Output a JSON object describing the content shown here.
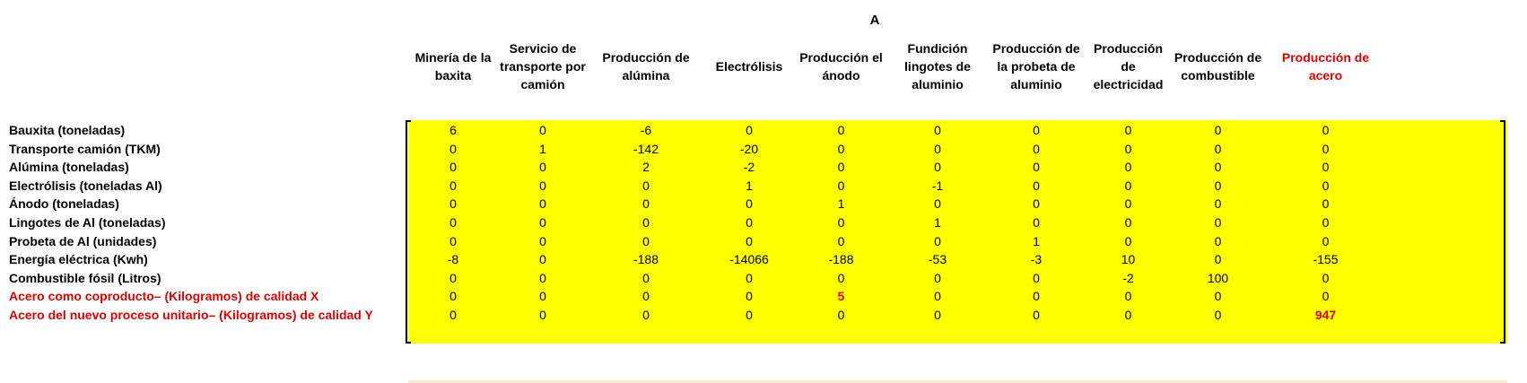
{
  "matrix_label": "A",
  "columns": [
    "Minería de la baxita",
    "Servicio de transporte por camión",
    "Producción de alúmina",
    "Electrólisis",
    "Producción el ánodo",
    "Fundición lingotes de aluminio",
    "Producción de la probeta de aluminio",
    "Producción de electricidad",
    "Producción de combustible",
    "Producción de acero"
  ],
  "highlight_color": "#ffff00",
  "accent_color": "#e00000",
  "rows": [
    {
      "label": "Bauxita (toneladas)",
      "values": [
        "6",
        "0",
        "-6",
        "0",
        "0",
        "0",
        "0",
        "0",
        "0",
        "0"
      ]
    },
    {
      "label": "Transporte camión (TKM)",
      "values": [
        "0",
        "1",
        "-142",
        "-20",
        "0",
        "0",
        "0",
        "0",
        "0",
        "0"
      ]
    },
    {
      "label": "Alúmina (toneladas)",
      "values": [
        "0",
        "0",
        "2",
        "-2",
        "0",
        "0",
        "0",
        "0",
        "0",
        "0"
      ]
    },
    {
      "label": "Electrólisis (toneladas Al)",
      "values": [
        "0",
        "0",
        "0",
        "1",
        "0",
        "-1",
        "0",
        "0",
        "0",
        "0"
      ]
    },
    {
      "label": "Ánodo (toneladas)",
      "values": [
        "0",
        "0",
        "0",
        "0",
        "1",
        "0",
        "0",
        "0",
        "0",
        "0"
      ]
    },
    {
      "label": "Lingotes de Al (toneladas)",
      "values": [
        "0",
        "0",
        "0",
        "0",
        "0",
        "1",
        "0",
        "0",
        "0",
        "0"
      ]
    },
    {
      "label": "Probeta de Al (unidades)",
      "values": [
        "0",
        "0",
        "0",
        "0",
        "0",
        "0",
        "1",
        "0",
        "0",
        "0"
      ]
    },
    {
      "label": "Energía eléctrica (Kwh)",
      "values": [
        "-8",
        "0",
        "-188",
        "-14066",
        "-188",
        "-53",
        "-3",
        "10",
        "0",
        "-155"
      ]
    },
    {
      "label": "Combustible fósil (Litros)",
      "values": [
        "0",
        "0",
        "0",
        "0",
        "0",
        "0",
        "0",
        "-2",
        "100",
        "0"
      ]
    },
    {
      "label": "Acero como coproducto– (Kilogramos) de calidad X",
      "values": [
        "0",
        "0",
        "0",
        "0",
        "5",
        "0",
        "0",
        "0",
        "0",
        "0"
      ]
    },
    {
      "label": "Acero  del nuevo proceso unitario– (Kilogramos) de calidad Y",
      "values": [
        "0",
        "0",
        "0",
        "0",
        "0",
        "0",
        "0",
        "0",
        "0",
        "947"
      ]
    }
  ]
}
